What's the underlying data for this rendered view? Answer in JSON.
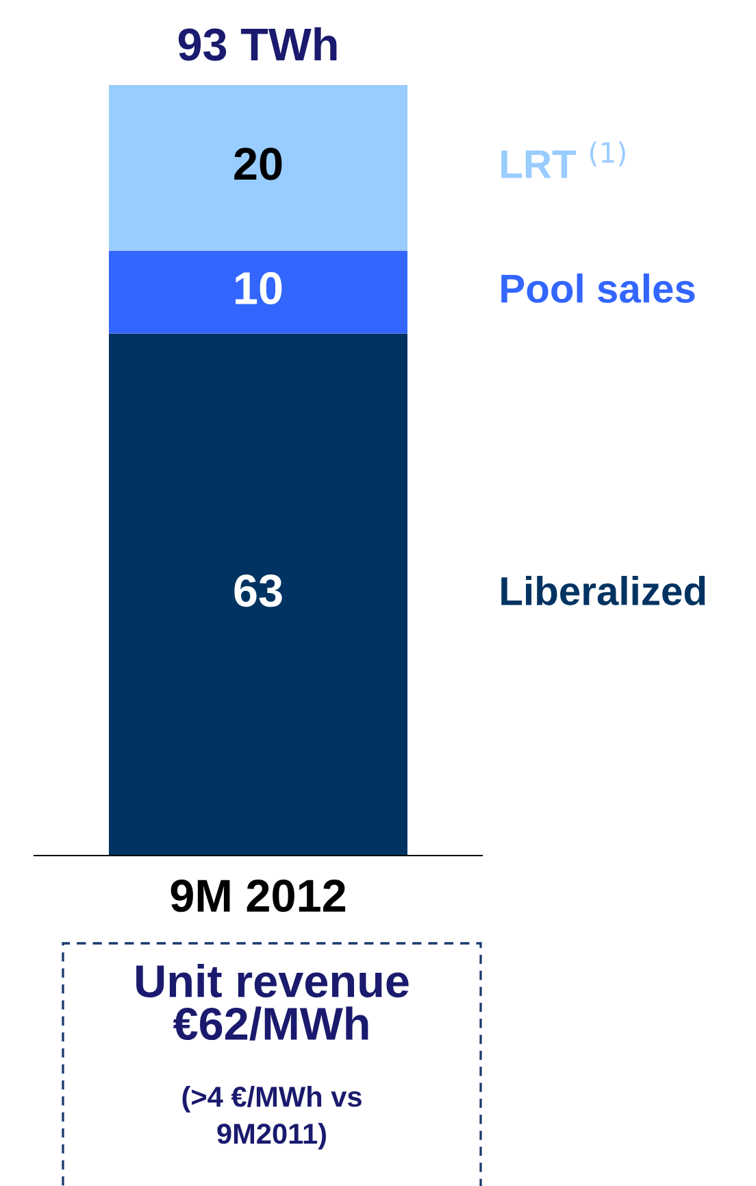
{
  "chart_data": {
    "type": "bar",
    "stacked": true,
    "categories": [
      "9M 2012"
    ],
    "series": [
      {
        "name": "Liberalized",
        "color": "#003361",
        "values": [
          63
        ]
      },
      {
        "name": "Pool sales",
        "color": "#3366ff",
        "values": [
          10
        ]
      },
      {
        "name": "LRT $^{(1)}$",
        "color": "#99ccff",
        "values": [
          20
        ]
      }
    ],
    "data_labels": true,
    "totals": [
      "93 TWh"
    ],
    "legend": false,
    "annotations": [
      "Unit revenue\n€62/MWh",
      "(>4 €/MWh vs\n9M2011)"
    ]
  }
}
